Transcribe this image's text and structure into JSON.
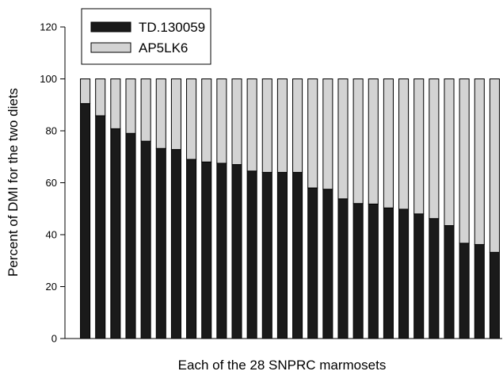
{
  "chart_data": {
    "type": "bar",
    "stacked": true,
    "xlabel": "Each of the 28 SNPRC marmosets",
    "ylabel": "Percent of DMI for the two diets",
    "ylim": [
      0,
      120
    ],
    "yticks": [
      0,
      20,
      40,
      60,
      80,
      100,
      120
    ],
    "grid": false,
    "legend_position": "top-left",
    "series": [
      {
        "name": "TD.130059",
        "color": "#1a1a1a",
        "values": [
          90.5,
          85.8,
          80.8,
          79.0,
          76.0,
          73.2,
          72.8,
          69.0,
          68.0,
          67.5,
          67.0,
          64.5,
          64.0,
          64.0,
          64.0,
          58.0,
          57.5,
          53.8,
          52.0,
          51.8,
          50.3,
          49.8,
          48.0,
          46.2,
          43.5,
          36.7,
          36.2,
          33.2
        ]
      },
      {
        "name": "AP5LK6",
        "color": "#d3d3d3",
        "values": [
          9.5,
          14.2,
          19.2,
          21.0,
          24.0,
          26.8,
          27.2,
          31.0,
          32.0,
          32.5,
          33.0,
          35.5,
          36.0,
          36.0,
          36.0,
          42.0,
          42.5,
          46.2,
          48.0,
          48.2,
          49.7,
          50.2,
          52.0,
          53.8,
          56.5,
          63.3,
          63.8,
          66.8
        ]
      }
    ]
  }
}
